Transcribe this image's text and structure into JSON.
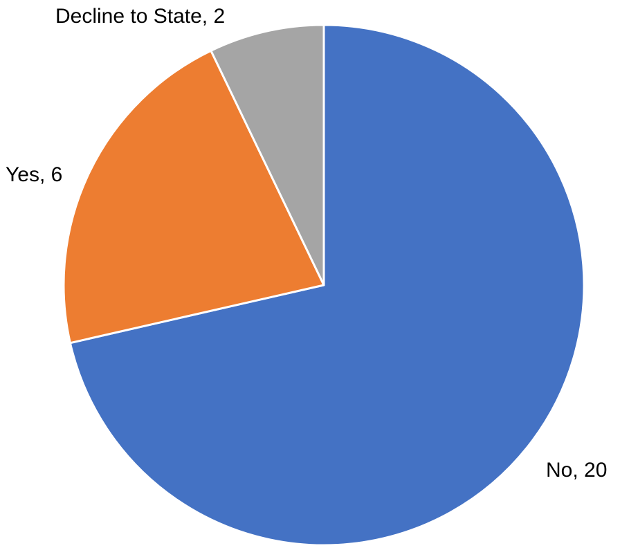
{
  "chart_data": {
    "type": "pie",
    "categories": [
      "No",
      "Yes",
      "Decline to State"
    ],
    "values": [
      20,
      6,
      2
    ],
    "colors": [
      "#4472C4",
      "#ED7D31",
      "#A5A5A5"
    ],
    "labels": [
      "No, 20",
      "Yes, 6",
      "Decline to State, 2"
    ],
    "start_angle": "12 o'clock",
    "direction": "clockwise",
    "legend": "none"
  }
}
